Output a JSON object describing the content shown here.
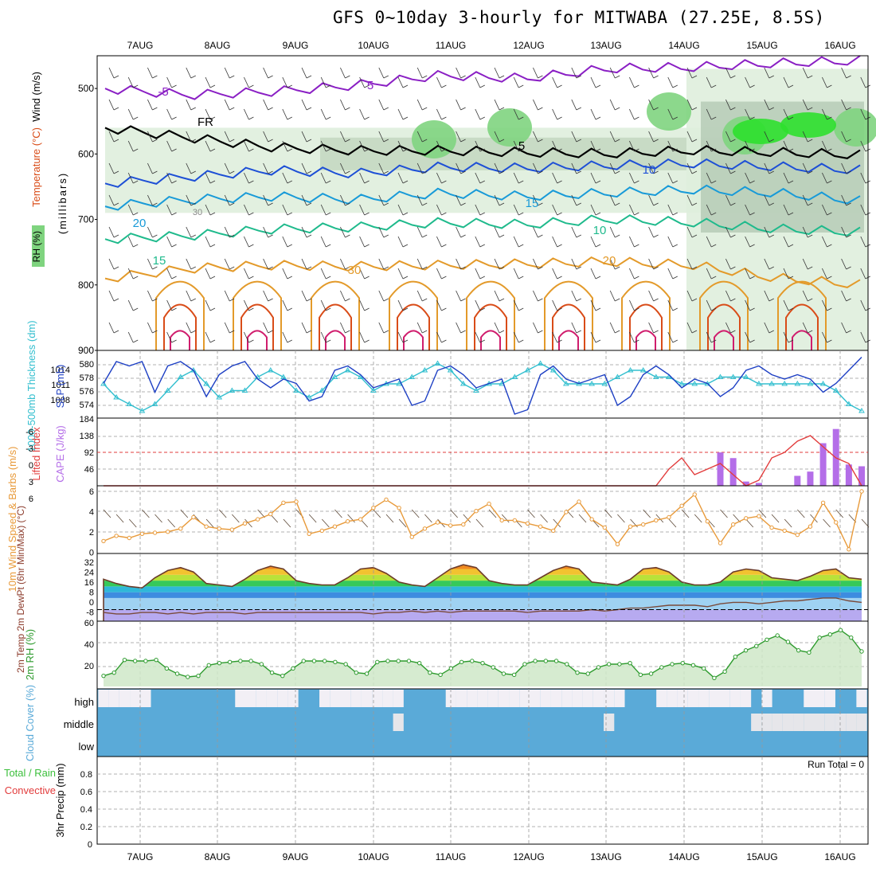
{
  "title": "GFS 0~10day 3-hourly for MITWABA (27.25E, 8.5S)",
  "colors": {
    "rh_light": "#dfeedd",
    "rh_mid": "#c5d8c2",
    "rh_dark": "#9fb8a0",
    "rh_green": "#7fd47f",
    "rh_bright": "#2ee02e",
    "t_purple": "#8a1fc4",
    "t_blue": "#1d4fd6",
    "t_lightblue": "#189ad8",
    "t_teal": "#1fba8c",
    "t_orange": "#e39a2a",
    "t_red": "#d94c18",
    "t_magenta": "#d01d6d",
    "slp": "#1d3fc4",
    "thickness": "#33bfcf",
    "lifted": "#e23c3c",
    "cape": "#b46ee8",
    "wind": "#e89a3a",
    "rh2m": "#2e9b2e",
    "cloud": "#5aaad8",
    "precip_green": "#3bbf3b",
    "precip_red": "#e23c3c"
  },
  "chart_data": [
    {
      "type": "heatmap",
      "title": "",
      "ylabel": "(millibars)",
      "legend_labels": [
        "Wind (m/s)",
        "Temperature (°C)",
        "RH (%)"
      ],
      "x_ticks": [
        "7AUG",
        "8AUG",
        "9AUG",
        "10AUG",
        "11AUG",
        "12AUG",
        "13AUG",
        "14AUG",
        "15AUG",
        "16AUG"
      ],
      "y_ticks": [
        500,
        600,
        700,
        800,
        900
      ],
      "ylim": [
        450,
        900
      ],
      "contour_labels": [
        "-5",
        "5",
        "FR",
        "5",
        "10",
        "15",
        "20",
        "10",
        "15",
        "20",
        "30"
      ],
      "isotherms": [
        {
          "label": "-5",
          "levels": [
            500,
            510,
            505,
            495,
            480,
            485,
            470,
            468,
            462,
            458
          ]
        },
        {
          "label": "FR",
          "levels": [
            560,
            575,
            590,
            595,
            595,
            598,
            600,
            595,
            598,
            602
          ]
        },
        {
          "label": "5",
          "levels": [
            645,
            635,
            625,
            630,
            620,
            622,
            618,
            615,
            620,
            625
          ]
        },
        {
          "label": "10",
          "levels": [
            680,
            670,
            665,
            670,
            660,
            665,
            660,
            655,
            660,
            672
          ]
        },
        {
          "label": "15",
          "levels": [
            730,
            725,
            715,
            712,
            705,
            708,
            700,
            705,
            715,
            720
          ]
        },
        {
          "label": "20",
          "levels": [
            790,
            775,
            770,
            772,
            770,
            768,
            765,
            770,
            790,
            800
          ]
        }
      ],
      "moist_days": [
        "14AUG",
        "15AUG",
        "16AUG"
      ]
    },
    {
      "type": "line",
      "ylabel_left": "1000-500mb Thickness (dm)",
      "ylabel_right": "SLP (mb)",
      "left_ticks": [
        "580",
        "578",
        "576",
        "574"
      ],
      "right_ticks": [
        "1014",
        "1011",
        "1008"
      ],
      "series": [
        {
          "name": "SLP (mb)",
          "values": [
            1011,
            1016,
            1015,
            1016,
            1009,
            1015,
            1016,
            1014,
            1008,
            1013,
            1015,
            1016,
            1012,
            1010,
            1012,
            1011,
            1007,
            1008,
            1014,
            1015,
            1013,
            1010,
            1011,
            1012,
            1006,
            1007,
            1014,
            1015,
            1013,
            1010,
            1011,
            1012,
            1004,
            1005,
            1013,
            1015,
            1012,
            1011,
            1012,
            1013,
            1006,
            1008,
            1013,
            1015,
            1013,
            1010,
            1012,
            1011,
            1008,
            1010,
            1014,
            1015,
            1013,
            1012,
            1013,
            1012,
            1009,
            1011,
            1014,
            1017
          ]
        },
        {
          "name": "Thickness (dm)",
          "values": [
            577,
            575,
            574,
            573,
            574,
            576,
            578,
            579,
            577,
            575,
            576,
            576,
            578,
            579,
            578,
            576,
            575,
            576,
            578,
            579,
            578,
            576,
            577,
            577,
            578,
            579,
            580,
            579,
            577,
            576,
            577,
            577,
            578,
            579,
            580,
            579,
            577,
            577,
            577,
            577,
            578,
            579,
            579,
            578,
            578,
            577,
            577,
            577,
            578,
            578,
            578,
            577,
            577,
            577,
            577,
            577,
            577,
            576,
            574,
            573
          ]
        }
      ]
    },
    {
      "type": "bar",
      "ylabel_left": "Lifted Index",
      "ylabel_right": "CAPE (J/kg)",
      "left_ticks": [
        "-6",
        "-3",
        "0",
        "3",
        "6"
      ],
      "right_ticks": [
        "184",
        "138",
        "92",
        "46"
      ],
      "lifted_index": [
        6,
        6,
        6,
        6,
        6,
        6,
        6,
        6,
        6,
        6,
        6,
        6,
        6,
        6,
        6,
        6,
        6,
        6,
        6,
        6,
        6,
        6,
        6,
        6,
        6,
        6,
        6,
        6,
        6,
        6,
        6,
        6,
        6,
        6,
        6,
        6,
        6,
        6,
        6,
        6,
        6,
        6,
        6,
        6,
        3,
        1,
        4,
        3,
        2,
        4,
        6,
        5,
        1,
        0,
        -2,
        -3,
        -1,
        1,
        2,
        6
      ],
      "cape": [
        0,
        0,
        0,
        0,
        0,
        0,
        0,
        0,
        0,
        0,
        0,
        0,
        0,
        0,
        0,
        0,
        0,
        0,
        0,
        0,
        0,
        0,
        0,
        0,
        0,
        0,
        0,
        0,
        0,
        0,
        0,
        0,
        0,
        0,
        0,
        0,
        0,
        0,
        0,
        0,
        0,
        0,
        0,
        0,
        0,
        0,
        0,
        0,
        94,
        78,
        12,
        8,
        0,
        0,
        28,
        40,
        120,
        160,
        60,
        55
      ]
    },
    {
      "type": "line",
      "ylabel": "10m Wind Speed & Barbs (m/s)",
      "y_ticks": [
        "6",
        "4",
        "2",
        "0"
      ],
      "ylim": [
        0,
        6
      ],
      "values": [
        1.2,
        1.7,
        1.5,
        1.9,
        2.0,
        2.1,
        2.4,
        3.5,
        2.6,
        2.4,
        2.3,
        2.9,
        3.3,
        3.8,
        4.9,
        5.0,
        1.9,
        2.2,
        2.6,
        3.1,
        3.3,
        4.4,
        5.2,
        4.4,
        1.6,
        2.4,
        3.0,
        2.7,
        2.8,
        4.1,
        4.8,
        3.2,
        3.2,
        2.9,
        2.6,
        2.2,
        4.0,
        5.0,
        3.3,
        2.5,
        0.9,
        2.6,
        2.8,
        3.2,
        3.5,
        4.6,
        5.7,
        3.1,
        1.0,
        2.8,
        3.4,
        3.6,
        2.5,
        2.2,
        1.8,
        2.6,
        4.9,
        3.0,
        0.4,
        6.0
      ]
    },
    {
      "type": "area",
      "ylabel": "2m Temp 2m DewPt (6hr Min/Max) (°C)",
      "y_ticks": [
        "32",
        "24",
        "16",
        "8",
        "0",
        "-8"
      ],
      "ylim": [
        -8,
        36
      ],
      "temp": [
        21,
        18,
        16,
        15,
        22,
        27,
        29,
        26,
        18,
        17,
        16,
        21,
        27,
        30,
        28,
        20,
        18,
        17,
        17,
        22,
        28,
        29,
        25,
        19,
        17,
        16,
        22,
        28,
        31,
        29,
        20,
        18,
        17,
        17,
        22,
        27,
        30,
        28,
        19,
        18,
        17,
        21,
        28,
        29,
        26,
        19,
        17,
        17,
        19,
        26,
        28,
        27,
        22,
        21,
        20,
        23,
        27,
        28,
        22,
        21
      ],
      "dewpoint": [
        -2,
        -3,
        -3,
        -2,
        -2,
        -3,
        -2,
        -3,
        -2,
        -2,
        -2,
        -3,
        -2,
        -2,
        -2,
        -2,
        -2,
        -2,
        -2,
        -2,
        -2,
        -3,
        -2,
        -2,
        -1,
        -2,
        -1,
        -2,
        -1,
        -1,
        -1,
        -1,
        -1,
        -2,
        -1,
        -1,
        -1,
        -1,
        0,
        -1,
        0,
        1,
        1,
        2,
        3,
        3,
        3,
        2,
        4,
        5,
        5,
        4,
        5,
        6,
        6,
        7,
        8,
        8,
        6,
        5
      ]
    },
    {
      "type": "area",
      "ylabel": "2m RH (%)",
      "y_ticks": [
        "60",
        "40",
        "20"
      ],
      "ylim": [
        0,
        60
      ],
      "values": [
        10,
        13,
        25,
        24,
        24,
        25,
        17,
        12,
        9,
        10,
        20,
        22,
        23,
        24,
        24,
        21,
        13,
        10,
        17,
        24,
        24,
        24,
        23,
        21,
        13,
        12,
        23,
        24,
        24,
        24,
        22,
        13,
        11,
        17,
        23,
        24,
        22,
        18,
        12,
        11,
        21,
        24,
        24,
        24,
        21,
        13,
        12,
        18,
        21,
        21,
        22,
        11,
        12,
        18,
        21,
        22,
        20,
        17,
        8,
        14,
        28,
        34,
        38,
        44,
        48,
        42,
        34,
        32,
        46,
        49,
        53,
        46,
        33
      ]
    },
    {
      "type": "bar",
      "ylabel": "Cloud Cover (%)",
      "categories": [
        "high",
        "middle",
        "low"
      ],
      "high": [
        0,
        0,
        0,
        0,
        0,
        1,
        1,
        1,
        1,
        1,
        1,
        1,
        1,
        0,
        0,
        0,
        0,
        0,
        0,
        1,
        1,
        0,
        0,
        0,
        0,
        0,
        0,
        0,
        0,
        1,
        1,
        1,
        1,
        0,
        0,
        0,
        0,
        0,
        0,
        0,
        0,
        0,
        0,
        0,
        0,
        0,
        0,
        0,
        0,
        0,
        1,
        1,
        1,
        0,
        0,
        0,
        0,
        0,
        0,
        0,
        0,
        0,
        1,
        0,
        1,
        1,
        1,
        0,
        0,
        0,
        1,
        1,
        0
      ],
      "middle": [
        0,
        0,
        0,
        0,
        0,
        0,
        0,
        0,
        0,
        0,
        0,
        0,
        0,
        0,
        0,
        0,
        0,
        0,
        0,
        0,
        0,
        0,
        0,
        0,
        0,
        0,
        0,
        0,
        1,
        0,
        0,
        0,
        0,
        0,
        0,
        0,
        0,
        0,
        0,
        0,
        0,
        0,
        0,
        0,
        0,
        0,
        0,
        0,
        1,
        0,
        0,
        0,
        0,
        0,
        0,
        0,
        0,
        0,
        0,
        0,
        0,
        0,
        1,
        1,
        1,
        1,
        1,
        1,
        1,
        1,
        1,
        1,
        1
      ]
    },
    {
      "type": "bar",
      "ylabel": "3hr Precip (mm)",
      "legend_labels": [
        "Total / Rain",
        "Convective"
      ],
      "y_ticks": [
        "0.8",
        "0.6",
        "0.4",
        "0.2",
        "0"
      ],
      "ylim": [
        0,
        1
      ],
      "annotation": "Run Total = 0",
      "values": [
        0,
        0,
        0,
        0,
        0,
        0,
        0,
        0,
        0,
        0
      ]
    }
  ]
}
